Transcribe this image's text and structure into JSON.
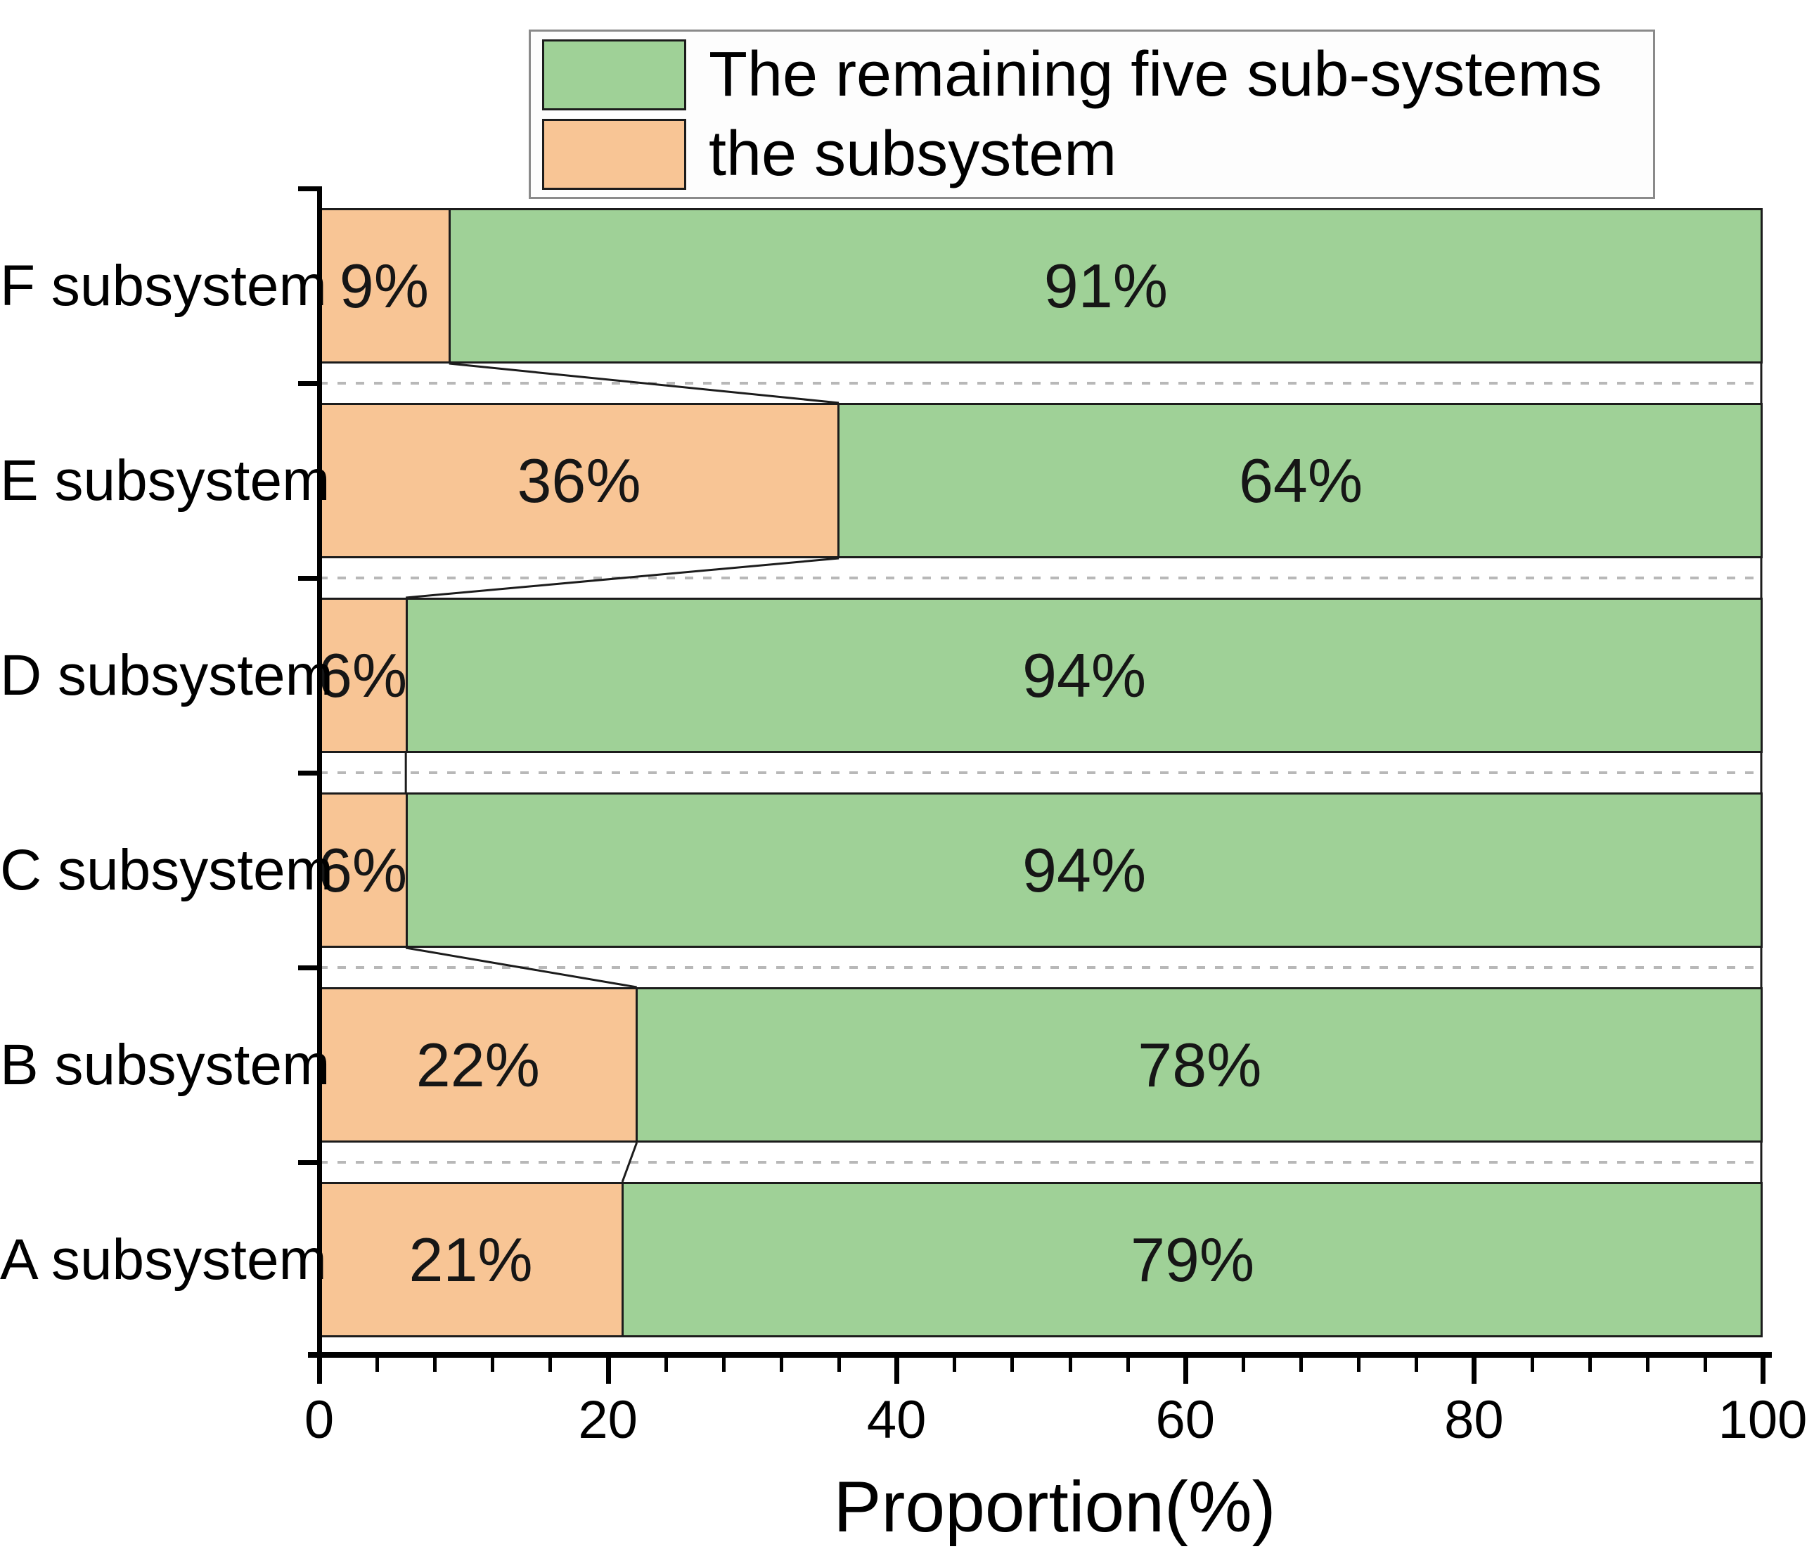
{
  "figure": {
    "background": "#ffffff",
    "axis_color": "#000000",
    "bar_border_color": "#1c1c1c",
    "dashed_separator_color": "#b8b8b8"
  },
  "legend": {
    "entries": [
      {
        "label": "The remaining five sub-systems",
        "color": "#9FD197"
      },
      {
        "label": "the subsystem",
        "color": "#F8C595"
      }
    ]
  },
  "chart_data": {
    "type": "bar",
    "orientation": "horizontal",
    "stacked": true,
    "title": "",
    "xlabel": "Proportion(%)",
    "ylabel": "",
    "categories_top_to_bottom": [
      "F subsystem",
      "E subsystem",
      "D subsystem",
      "C subsystem",
      "B subsystem",
      "A subsystem"
    ],
    "series": [
      {
        "name": "the subsystem",
        "color": "#F8C595",
        "position": "left",
        "values": [
          9,
          36,
          6,
          6,
          22,
          21
        ],
        "labels": [
          "9%",
          "36%",
          "6%",
          "6%",
          "22%",
          "21%"
        ]
      },
      {
        "name": "The remaining five sub-systems",
        "color": "#9FD197",
        "position": "right",
        "values": [
          91,
          64,
          94,
          94,
          78,
          79
        ],
        "labels": [
          "91%",
          "64%",
          "94%",
          "94%",
          "78%",
          "79%"
        ]
      }
    ],
    "xlim": [
      0,
      100
    ],
    "x_major_ticks": [
      0,
      20,
      40,
      60,
      80,
      100
    ],
    "x_major_tick_labels": [
      "0",
      "20",
      "40",
      "60",
      "80",
      "100"
    ],
    "x_minor_tick_step": 4,
    "gridlines": "dashed horizontal separators between bar rows",
    "legend_position": "top-center",
    "segment_connector_lines": true
  }
}
